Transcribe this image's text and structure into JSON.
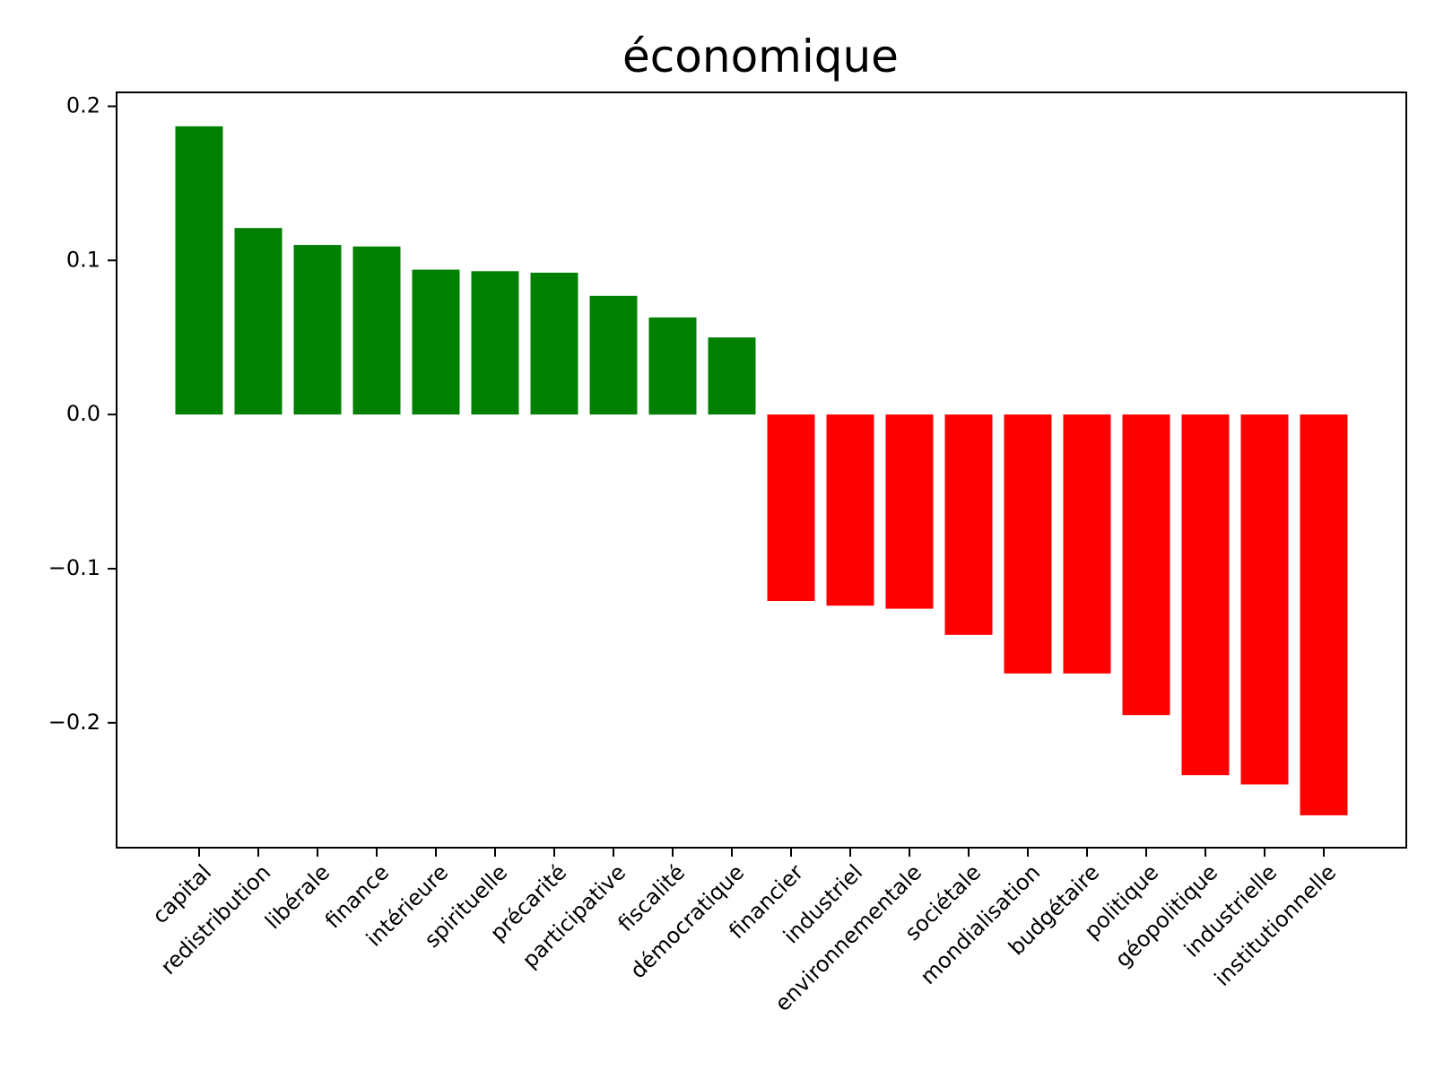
{
  "chart_data": {
    "type": "bar",
    "title": "économique",
    "xlabel": "",
    "ylabel": "",
    "categories": [
      "capital",
      "redistribution",
      "libérale",
      "finance",
      "intérieure",
      "spirituelle",
      "précarité",
      "participative",
      "fiscalité",
      "démocratique",
      "financier",
      "industriel",
      "environnementale",
      "sociétale",
      "mondialisation",
      "budgétaire",
      "politique",
      "géopolitique",
      "industrielle",
      "institutionnelle"
    ],
    "values": [
      0.187,
      0.121,
      0.11,
      0.109,
      0.094,
      0.093,
      0.092,
      0.077,
      0.063,
      0.05,
      -0.121,
      -0.124,
      -0.126,
      -0.143,
      -0.168,
      -0.168,
      -0.195,
      -0.234,
      -0.24,
      -0.26
    ],
    "ylim": [
      -0.281,
      0.209
    ],
    "yticks": [
      -0.2,
      -0.1,
      0.0,
      0.1,
      0.2
    ],
    "ytick_labels": [
      "−0.2",
      "−0.1",
      "0.0",
      "0.1",
      "0.2"
    ],
    "grid": false,
    "legend": "none",
    "colors": {
      "positive": "#008000",
      "negative": "#ff0000",
      "axis": "#000000",
      "background": "#ffffff"
    }
  }
}
